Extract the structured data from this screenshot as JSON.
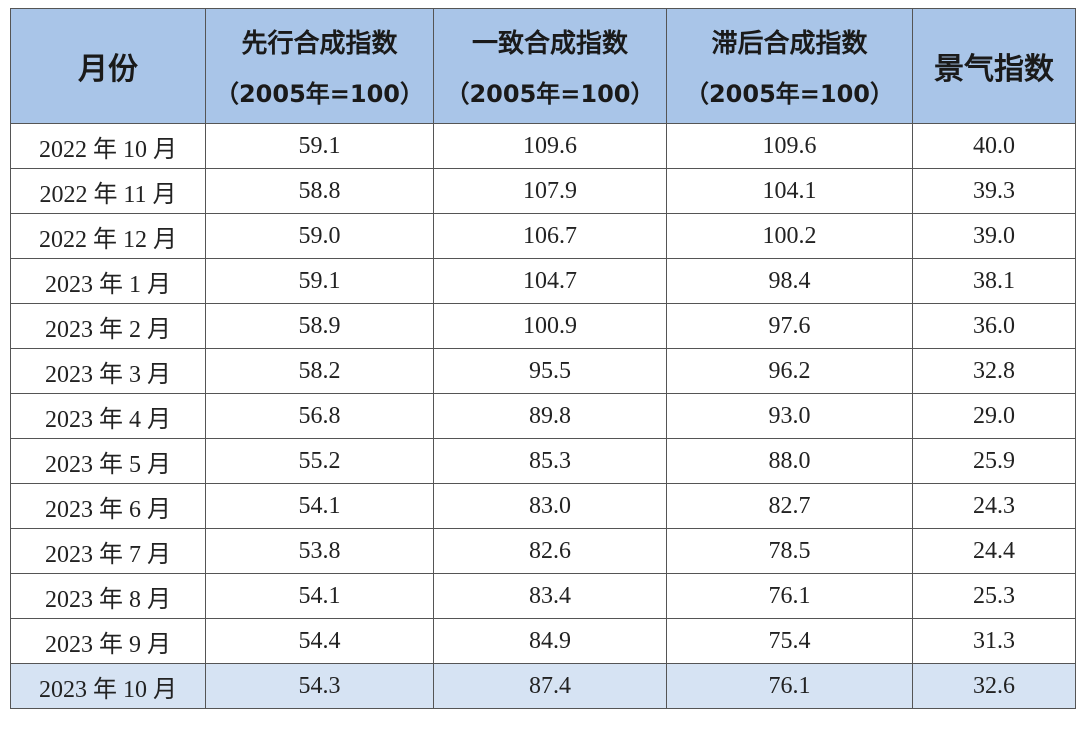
{
  "table": {
    "header": [
      {
        "title": "月份"
      },
      {
        "title": "先行合成指数",
        "subtitle": "（2005年=100）"
      },
      {
        "title": "一致合成指数",
        "subtitle": "（2005年=100）"
      },
      {
        "title": "滞后合成指数",
        "subtitle": "（2005年=100）"
      },
      {
        "title": "景气指数"
      }
    ],
    "rows": [
      [
        "2022 年 10 月",
        "59.1",
        "109.6",
        "109.6",
        "40.0"
      ],
      [
        "2022 年 11 月",
        "58.8",
        "107.9",
        "104.1",
        "39.3"
      ],
      [
        "2022 年 12 月",
        "59.0",
        "106.7",
        "100.2",
        "39.0"
      ],
      [
        "2023 年 1 月",
        "59.1",
        "104.7",
        "98.4",
        "38.1"
      ],
      [
        "2023 年 2 月",
        "58.9",
        "100.9",
        "97.6",
        "36.0"
      ],
      [
        "2023 年 3 月",
        "58.2",
        "95.5",
        "96.2",
        "32.8"
      ],
      [
        "2023 年 4 月",
        "56.8",
        "89.8",
        "93.0",
        "29.0"
      ],
      [
        "2023 年 5 月",
        "55.2",
        "85.3",
        "88.0",
        "25.9"
      ],
      [
        "2023 年 6 月",
        "54.1",
        "83.0",
        "82.7",
        "24.3"
      ],
      [
        "2023 年 7 月",
        "53.8",
        "82.6",
        "78.5",
        "24.4"
      ],
      [
        "2023 年 8 月",
        "54.1",
        "83.4",
        "76.1",
        "25.3"
      ],
      [
        "2023 年 9 月",
        "54.4",
        "84.9",
        "75.4",
        "31.3"
      ],
      [
        "2023 年 10 月",
        "54.3",
        "87.4",
        "76.1",
        "32.6"
      ]
    ]
  }
}
